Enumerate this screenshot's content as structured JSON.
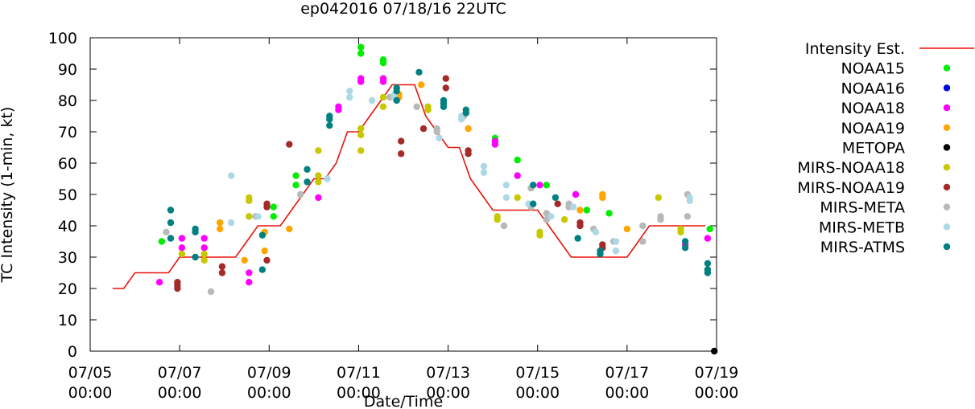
{
  "chart_data": {
    "type": "scatter",
    "title": "ep042016 07/18/16 22UTC",
    "xlabel": "Date/Time",
    "ylabel": "TC Intensity (1-min, kt)",
    "x_unit": "day",
    "xlim": [
      5,
      19
    ],
    "ylim": [
      0,
      100
    ],
    "y_ticks": [
      0,
      10,
      20,
      30,
      40,
      50,
      60,
      70,
      80,
      90,
      100
    ],
    "x_ticks": [
      {
        "value": 5,
        "date": "07/05",
        "time": "00:00"
      },
      {
        "value": 7,
        "date": "07/07",
        "time": "00:00"
      },
      {
        "value": 9,
        "date": "07/09",
        "time": "00:00"
      },
      {
        "value": 11,
        "date": "07/11",
        "time": "00:00"
      },
      {
        "value": 13,
        "date": "07/13",
        "time": "00:00"
      },
      {
        "value": 15,
        "date": "07/15",
        "time": "00:00"
      },
      {
        "value": 17,
        "date": "07/17",
        "time": "00:00"
      },
      {
        "value": 19,
        "date": "07/19",
        "time": "00:00"
      }
    ],
    "grid": false,
    "legend_position": "right",
    "intensity": {
      "name": "Intensity Est.",
      "color": "#e8120c",
      "points": [
        [
          5.5,
          20
        ],
        [
          5.75,
          20
        ],
        [
          6.0,
          25
        ],
        [
          6.25,
          25
        ],
        [
          6.5,
          25
        ],
        [
          6.75,
          25
        ],
        [
          7.0,
          30
        ],
        [
          7.25,
          30
        ],
        [
          7.5,
          30
        ],
        [
          7.75,
          30
        ],
        [
          8.0,
          30
        ],
        [
          8.25,
          30
        ],
        [
          8.5,
          35
        ],
        [
          8.75,
          40
        ],
        [
          9.0,
          40
        ],
        [
          9.25,
          40
        ],
        [
          9.5,
          45
        ],
        [
          9.75,
          50
        ],
        [
          10.0,
          55
        ],
        [
          10.25,
          55
        ],
        [
          10.5,
          60
        ],
        [
          10.75,
          70
        ],
        [
          11.0,
          70
        ],
        [
          11.25,
          75
        ],
        [
          11.5,
          80
        ],
        [
          11.75,
          85
        ],
        [
          12.0,
          85
        ],
        [
          12.25,
          85
        ],
        [
          12.5,
          75
        ],
        [
          12.75,
          70
        ],
        [
          13.0,
          65
        ],
        [
          13.25,
          65
        ],
        [
          13.5,
          55
        ],
        [
          13.75,
          50
        ],
        [
          14.0,
          45
        ],
        [
          14.25,
          45
        ],
        [
          14.5,
          45
        ],
        [
          14.75,
          45
        ],
        [
          15.0,
          45
        ],
        [
          15.25,
          40
        ],
        [
          15.5,
          35
        ],
        [
          15.75,
          30
        ],
        [
          16.0,
          30
        ],
        [
          16.25,
          30
        ],
        [
          16.5,
          30
        ],
        [
          16.75,
          30
        ],
        [
          17.0,
          30
        ],
        [
          17.25,
          35
        ],
        [
          17.5,
          40
        ],
        [
          17.75,
          40
        ],
        [
          18.0,
          40
        ],
        [
          18.25,
          40
        ],
        [
          18.5,
          40
        ],
        [
          18.75,
          40
        ]
      ]
    },
    "series": [
      {
        "name": "NOAA15",
        "color": "#00ee00",
        "points": [
          [
            6.6,
            35
          ],
          [
            9.1,
            43
          ],
          [
            9.1,
            46
          ],
          [
            9.6,
            53
          ],
          [
            9.6,
            56
          ],
          [
            11.05,
            97
          ],
          [
            11.05,
            95
          ],
          [
            11.55,
            93
          ],
          [
            11.55,
            92
          ],
          [
            14.05,
            68
          ],
          [
            14.55,
            61
          ],
          [
            15.2,
            53
          ],
          [
            15.85,
            50
          ],
          [
            16.1,
            45
          ],
          [
            16.6,
            44
          ],
          [
            18.85,
            39
          ]
        ]
      },
      {
        "name": "NOAA16",
        "color": "#0000dd",
        "points": []
      },
      {
        "name": "NOAA18",
        "color": "#ff00ff",
        "points": [
          [
            6.55,
            22
          ],
          [
            7.05,
            36
          ],
          [
            7.05,
            33
          ],
          [
            7.55,
            36
          ],
          [
            7.55,
            33
          ],
          [
            8.55,
            25
          ],
          [
            8.55,
            22
          ],
          [
            10.1,
            49
          ],
          [
            10.55,
            77
          ],
          [
            10.55,
            78
          ],
          [
            11.05,
            87
          ],
          [
            11.05,
            86
          ],
          [
            11.55,
            87
          ],
          [
            11.55,
            86
          ],
          [
            14.05,
            67
          ],
          [
            14.05,
            66
          ],
          [
            14.55,
            56
          ],
          [
            15.05,
            53
          ],
          [
            15.85,
            50
          ],
          [
            18.3,
            34
          ],
          [
            18.8,
            36
          ]
        ]
      },
      {
        "name": "NOAA19",
        "color": "#ffa500",
        "points": [
          [
            8.45,
            29
          ],
          [
            7.9,
            41
          ],
          [
            7.9,
            39
          ],
          [
            8.9,
            38
          ],
          [
            8.9,
            32
          ],
          [
            9.45,
            39
          ],
          [
            11.9,
            82
          ],
          [
            11.9,
            81
          ],
          [
            12.4,
            85
          ],
          [
            13.45,
            71
          ],
          [
            15.95,
            45
          ],
          [
            16.45,
            50
          ],
          [
            16.45,
            49
          ],
          [
            17.0,
            39
          ]
        ]
      },
      {
        "name": "METOPA",
        "color": "#000000",
        "points": [
          [
            18.95,
            0
          ]
        ]
      },
      {
        "name": "MIRS-NOAA18",
        "color": "#c8c800",
        "points": [
          [
            7.05,
            31
          ],
          [
            7.55,
            31
          ],
          [
            7.55,
            29
          ],
          [
            8.55,
            49
          ],
          [
            8.55,
            48
          ],
          [
            8.55,
            43
          ],
          [
            10.1,
            64
          ],
          [
            10.1,
            56
          ],
          [
            10.1,
            54
          ],
          [
            11.05,
            71
          ],
          [
            11.05,
            69
          ],
          [
            11.05,
            64
          ],
          [
            11.55,
            81
          ],
          [
            11.55,
            78
          ],
          [
            12.55,
            78
          ],
          [
            12.55,
            77
          ],
          [
            14.1,
            43
          ],
          [
            14.1,
            42
          ],
          [
            14.55,
            49
          ],
          [
            15.05,
            38
          ],
          [
            15.05,
            37
          ],
          [
            15.6,
            42
          ],
          [
            17.7,
            49
          ],
          [
            18.2,
            39
          ],
          [
            18.2,
            38
          ]
        ]
      },
      {
        "name": "MIRS-NOAA19",
        "color": "#a52a2a",
        "points": [
          [
            6.95,
            22
          ],
          [
            6.95,
            21
          ],
          [
            6.95,
            20
          ],
          [
            7.95,
            27
          ],
          [
            7.95,
            25
          ],
          [
            8.95,
            47
          ],
          [
            8.95,
            46
          ],
          [
            8.95,
            29
          ],
          [
            9.45,
            66
          ],
          [
            11.95,
            67
          ],
          [
            11.95,
            63
          ],
          [
            12.45,
            71
          ],
          [
            12.95,
            87
          ],
          [
            12.95,
            84
          ],
          [
            13.45,
            64
          ],
          [
            13.45,
            63
          ],
          [
            15.45,
            47
          ],
          [
            15.95,
            41
          ],
          [
            15.95,
            40
          ],
          [
            16.45,
            34
          ],
          [
            16.45,
            33
          ]
        ]
      },
      {
        "name": "MIRS-META",
        "color": "#b8b8b8",
        "points": [
          [
            6.7,
            38
          ],
          [
            7.7,
            19
          ],
          [
            8.7,
            43
          ],
          [
            9.7,
            50
          ],
          [
            11.7,
            81
          ],
          [
            12.3,
            78
          ],
          [
            12.75,
            71
          ],
          [
            12.75,
            70
          ],
          [
            13.35,
            75
          ],
          [
            14.25,
            40
          ],
          [
            14.85,
            52
          ],
          [
            14.85,
            46
          ],
          [
            15.2,
            44
          ],
          [
            15.2,
            42
          ],
          [
            15.7,
            47
          ],
          [
            15.7,
            46
          ],
          [
            16.25,
            39
          ],
          [
            16.7,
            35
          ],
          [
            17.35,
            40
          ],
          [
            17.35,
            35
          ],
          [
            17.75,
            43
          ],
          [
            17.75,
            42
          ],
          [
            18.35,
            50
          ],
          [
            18.35,
            43
          ]
        ]
      },
      {
        "name": "MIRS-METB",
        "color": "#add8e6",
        "points": [
          [
            8.15,
            56
          ],
          [
            8.15,
            41
          ],
          [
            8.75,
            43
          ],
          [
            10.3,
            55
          ],
          [
            10.8,
            83
          ],
          [
            10.8,
            81
          ],
          [
            11.3,
            80
          ],
          [
            11.8,
            82
          ],
          [
            11.8,
            81
          ],
          [
            12.8,
            68
          ],
          [
            13.3,
            75
          ],
          [
            13.3,
            74
          ],
          [
            13.8,
            59
          ],
          [
            13.8,
            57
          ],
          [
            14.3,
            53
          ],
          [
            14.3,
            49
          ],
          [
            14.8,
            47
          ],
          [
            15.3,
            43
          ],
          [
            15.8,
            46
          ],
          [
            16.3,
            38
          ],
          [
            16.75,
            35
          ],
          [
            16.75,
            32
          ],
          [
            18.4,
            49
          ],
          [
            18.4,
            48
          ]
        ]
      },
      {
        "name": "MIRS-ATMS",
        "color": "#008080",
        "points": [
          [
            6.8,
            45
          ],
          [
            6.8,
            41
          ],
          [
            6.8,
            36
          ],
          [
            7.35,
            30
          ],
          [
            7.35,
            38
          ],
          [
            7.35,
            39
          ],
          [
            8.85,
            26
          ],
          [
            8.85,
            37
          ],
          [
            9.85,
            58
          ],
          [
            9.85,
            54
          ],
          [
            10.35,
            75
          ],
          [
            10.35,
            74
          ],
          [
            10.35,
            72
          ],
          [
            11.85,
            84
          ],
          [
            11.85,
            83
          ],
          [
            11.85,
            80
          ],
          [
            12.35,
            89
          ],
          [
            12.9,
            80
          ],
          [
            12.9,
            79
          ],
          [
            12.9,
            78
          ],
          [
            13.4,
            77
          ],
          [
            13.4,
            76
          ],
          [
            14.9,
            53
          ],
          [
            14.9,
            47
          ],
          [
            15.4,
            49
          ],
          [
            15.9,
            36
          ],
          [
            16.4,
            32
          ],
          [
            16.4,
            31
          ],
          [
            18.3,
            35
          ],
          [
            18.3,
            33
          ],
          [
            18.8,
            28
          ],
          [
            18.8,
            26
          ],
          [
            18.8,
            25
          ]
        ]
      }
    ]
  }
}
